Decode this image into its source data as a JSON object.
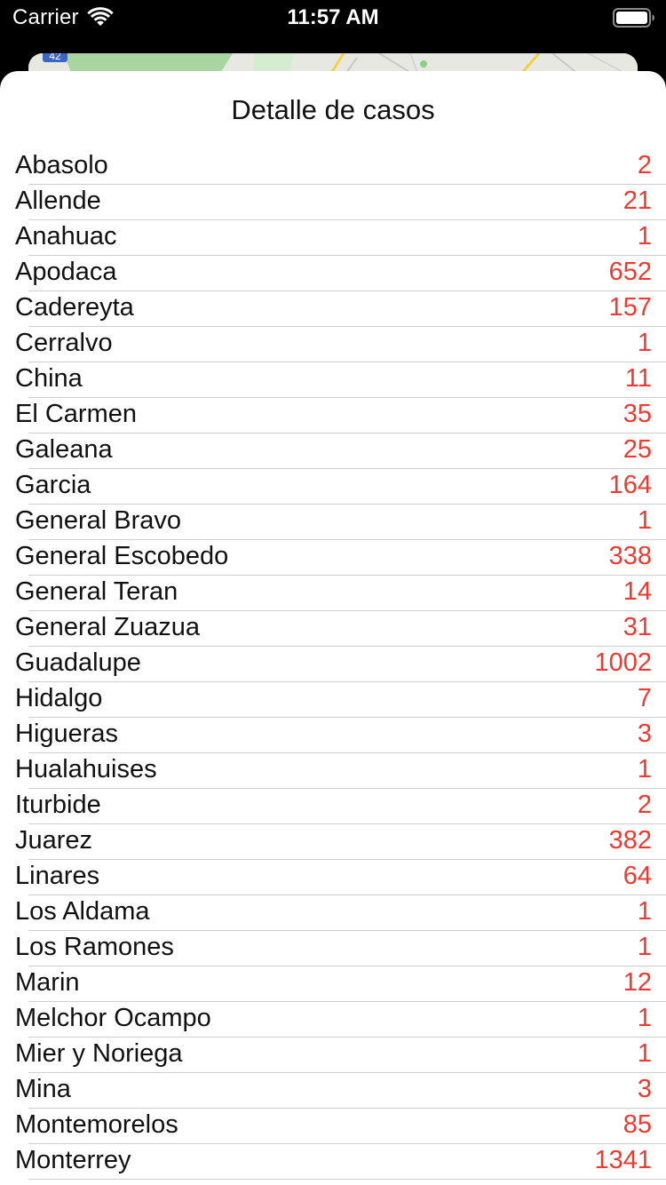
{
  "status_bar": {
    "carrier": "Carrier",
    "time": "11:57 AM",
    "wifi_icon": "wifi-icon",
    "battery_icon": "battery-icon"
  },
  "map": {
    "route_badge": "42"
  },
  "sheet": {
    "title": "Detalle de casos",
    "count_color": "#ee3a30",
    "items": [
      {
        "name": "Abasolo",
        "count": "2"
      },
      {
        "name": "Allende",
        "count": "21"
      },
      {
        "name": "Anahuac",
        "count": "1"
      },
      {
        "name": "Apodaca",
        "count": "652"
      },
      {
        "name": "Cadereyta",
        "count": "157"
      },
      {
        "name": "Cerralvo",
        "count": "1"
      },
      {
        "name": "China",
        "count": "11"
      },
      {
        "name": "El Carmen",
        "count": "35"
      },
      {
        "name": "Galeana",
        "count": "25"
      },
      {
        "name": "Garcia",
        "count": "164"
      },
      {
        "name": "General Bravo",
        "count": "1"
      },
      {
        "name": "General Escobedo",
        "count": "338"
      },
      {
        "name": "General Teran",
        "count": "14"
      },
      {
        "name": "General Zuazua",
        "count": "31"
      },
      {
        "name": "Guadalupe",
        "count": "1002"
      },
      {
        "name": "Hidalgo",
        "count": "7"
      },
      {
        "name": "Higueras",
        "count": "3"
      },
      {
        "name": "Hualahuises",
        "count": "1"
      },
      {
        "name": "Iturbide",
        "count": "2"
      },
      {
        "name": "Juarez",
        "count": "382"
      },
      {
        "name": "Linares",
        "count": "64"
      },
      {
        "name": "Los Aldama",
        "count": "1"
      },
      {
        "name": "Los Ramones",
        "count": "1"
      },
      {
        "name": "Marin",
        "count": "12"
      },
      {
        "name": "Melchor Ocampo",
        "count": "1"
      },
      {
        "name": "Mier y Noriega",
        "count": "1"
      },
      {
        "name": "Mina",
        "count": "3"
      },
      {
        "name": "Montemorelos",
        "count": "85"
      },
      {
        "name": "Monterrey",
        "count": "1341"
      }
    ]
  }
}
